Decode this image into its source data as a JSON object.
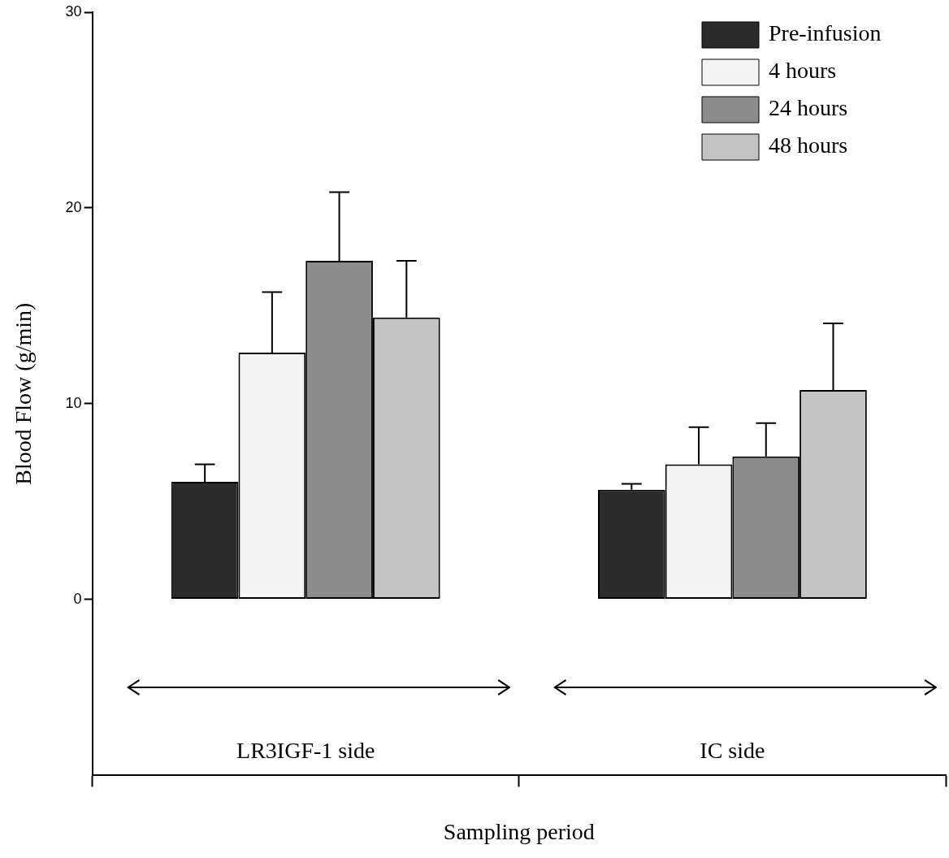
{
  "chart_data": {
    "type": "bar",
    "xlabel": "Sampling period",
    "ylabel": "Blood Flow (g/min)",
    "categories": [
      null,
      null
    ],
    "series": [
      {
        "name": "Pre-infusion",
        "color": "#2b2b2b",
        "values": [
          6.0,
          5.6
        ],
        "errors": [
          [
            6.0,
            6.9
          ],
          [
            5.6,
            5.9
          ]
        ]
      },
      {
        "name": "4 hours",
        "color": "#f4f4f4",
        "values": [
          12.6,
          6.9
        ],
        "errors": [
          [
            12.6,
            15.7
          ],
          [
            6.9,
            8.8
          ]
        ]
      },
      {
        "name": "24 hours",
        "color": "#8c8c8c",
        "values": [
          17.3,
          7.3
        ],
        "errors": [
          [
            17.3,
            20.8
          ],
          [
            7.3,
            9.0
          ]
        ]
      },
      {
        "name": "48 hours",
        "color": "#c4c4c4",
        "values": [
          14.4,
          10.7
        ],
        "errors": [
          [
            14.4,
            17.3
          ],
          [
            10.7,
            14.1
          ]
        ]
      }
    ],
    "ylim": [
      -9,
      30
    ],
    "yticks": [
      0,
      10,
      20,
      30
    ],
    "grid": false,
    "legend": "top right",
    "tick_labels": "y",
    "annotations": [
      "LR3IGF-1 side",
      "IC side"
    ]
  }
}
